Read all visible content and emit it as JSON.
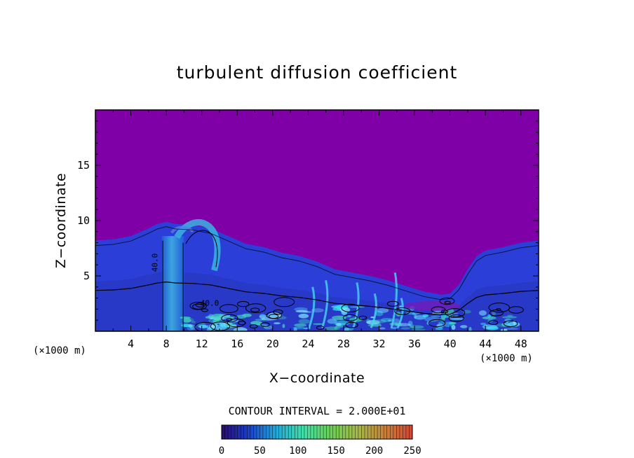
{
  "chart_data": {
    "type": "heatmap",
    "title": "turbulent diffusion coefficient",
    "xlabel": "X−coordinate",
    "ylabel": "Z−coordinate",
    "x_unit": "(×1000 m)",
    "y_unit": "(×1000 m)",
    "xlim": [
      0,
      50
    ],
    "ylim": [
      0,
      20
    ],
    "x_ticks": [
      4,
      8,
      12,
      16,
      20,
      24,
      28,
      32,
      36,
      40,
      44,
      48
    ],
    "y_ticks": [
      5,
      10,
      15
    ],
    "contour_interval_label": "CONTOUR INTERVAL = 2.000E+01",
    "contour_labels": [
      "40.0",
      "40.0"
    ],
    "colorbar": {
      "min": 0,
      "max": 250,
      "ticks": [
        0,
        50,
        100,
        150,
        200,
        250
      ],
      "colors": [
        "#2a0a6e",
        "#1b3fc8",
        "#23a8d8",
        "#3fe0a8",
        "#6ccf55",
        "#a4b84a",
        "#c9803a",
        "#d24534"
      ]
    },
    "background_color": "#8000a8",
    "boundary_layer_top": [
      [
        0,
        8.2
      ],
      [
        2,
        8.3
      ],
      [
        4,
        8.6
      ],
      [
        6,
        9.3
      ],
      [
        7,
        9.7
      ],
      [
        8,
        9.9
      ],
      [
        9,
        9.7
      ],
      [
        11,
        9.6
      ],
      [
        13,
        9.3
      ],
      [
        15,
        8.6
      ],
      [
        17,
        7.9
      ],
      [
        19,
        7.6
      ],
      [
        21,
        7.1
      ],
      [
        23,
        6.8
      ],
      [
        25,
        6.3
      ],
      [
        27,
        5.6
      ],
      [
        29,
        5.3
      ],
      [
        31,
        5.0
      ],
      [
        33,
        4.6
      ],
      [
        35,
        4.1
      ],
      [
        37,
        3.6
      ],
      [
        39,
        3.3
      ],
      [
        40,
        3.4
      ],
      [
        41,
        4.2
      ],
      [
        42,
        5.6
      ],
      [
        43,
        6.8
      ],
      [
        44,
        7.3
      ],
      [
        46,
        7.6
      ],
      [
        48,
        8.0
      ],
      [
        50,
        8.2
      ]
    ]
  }
}
